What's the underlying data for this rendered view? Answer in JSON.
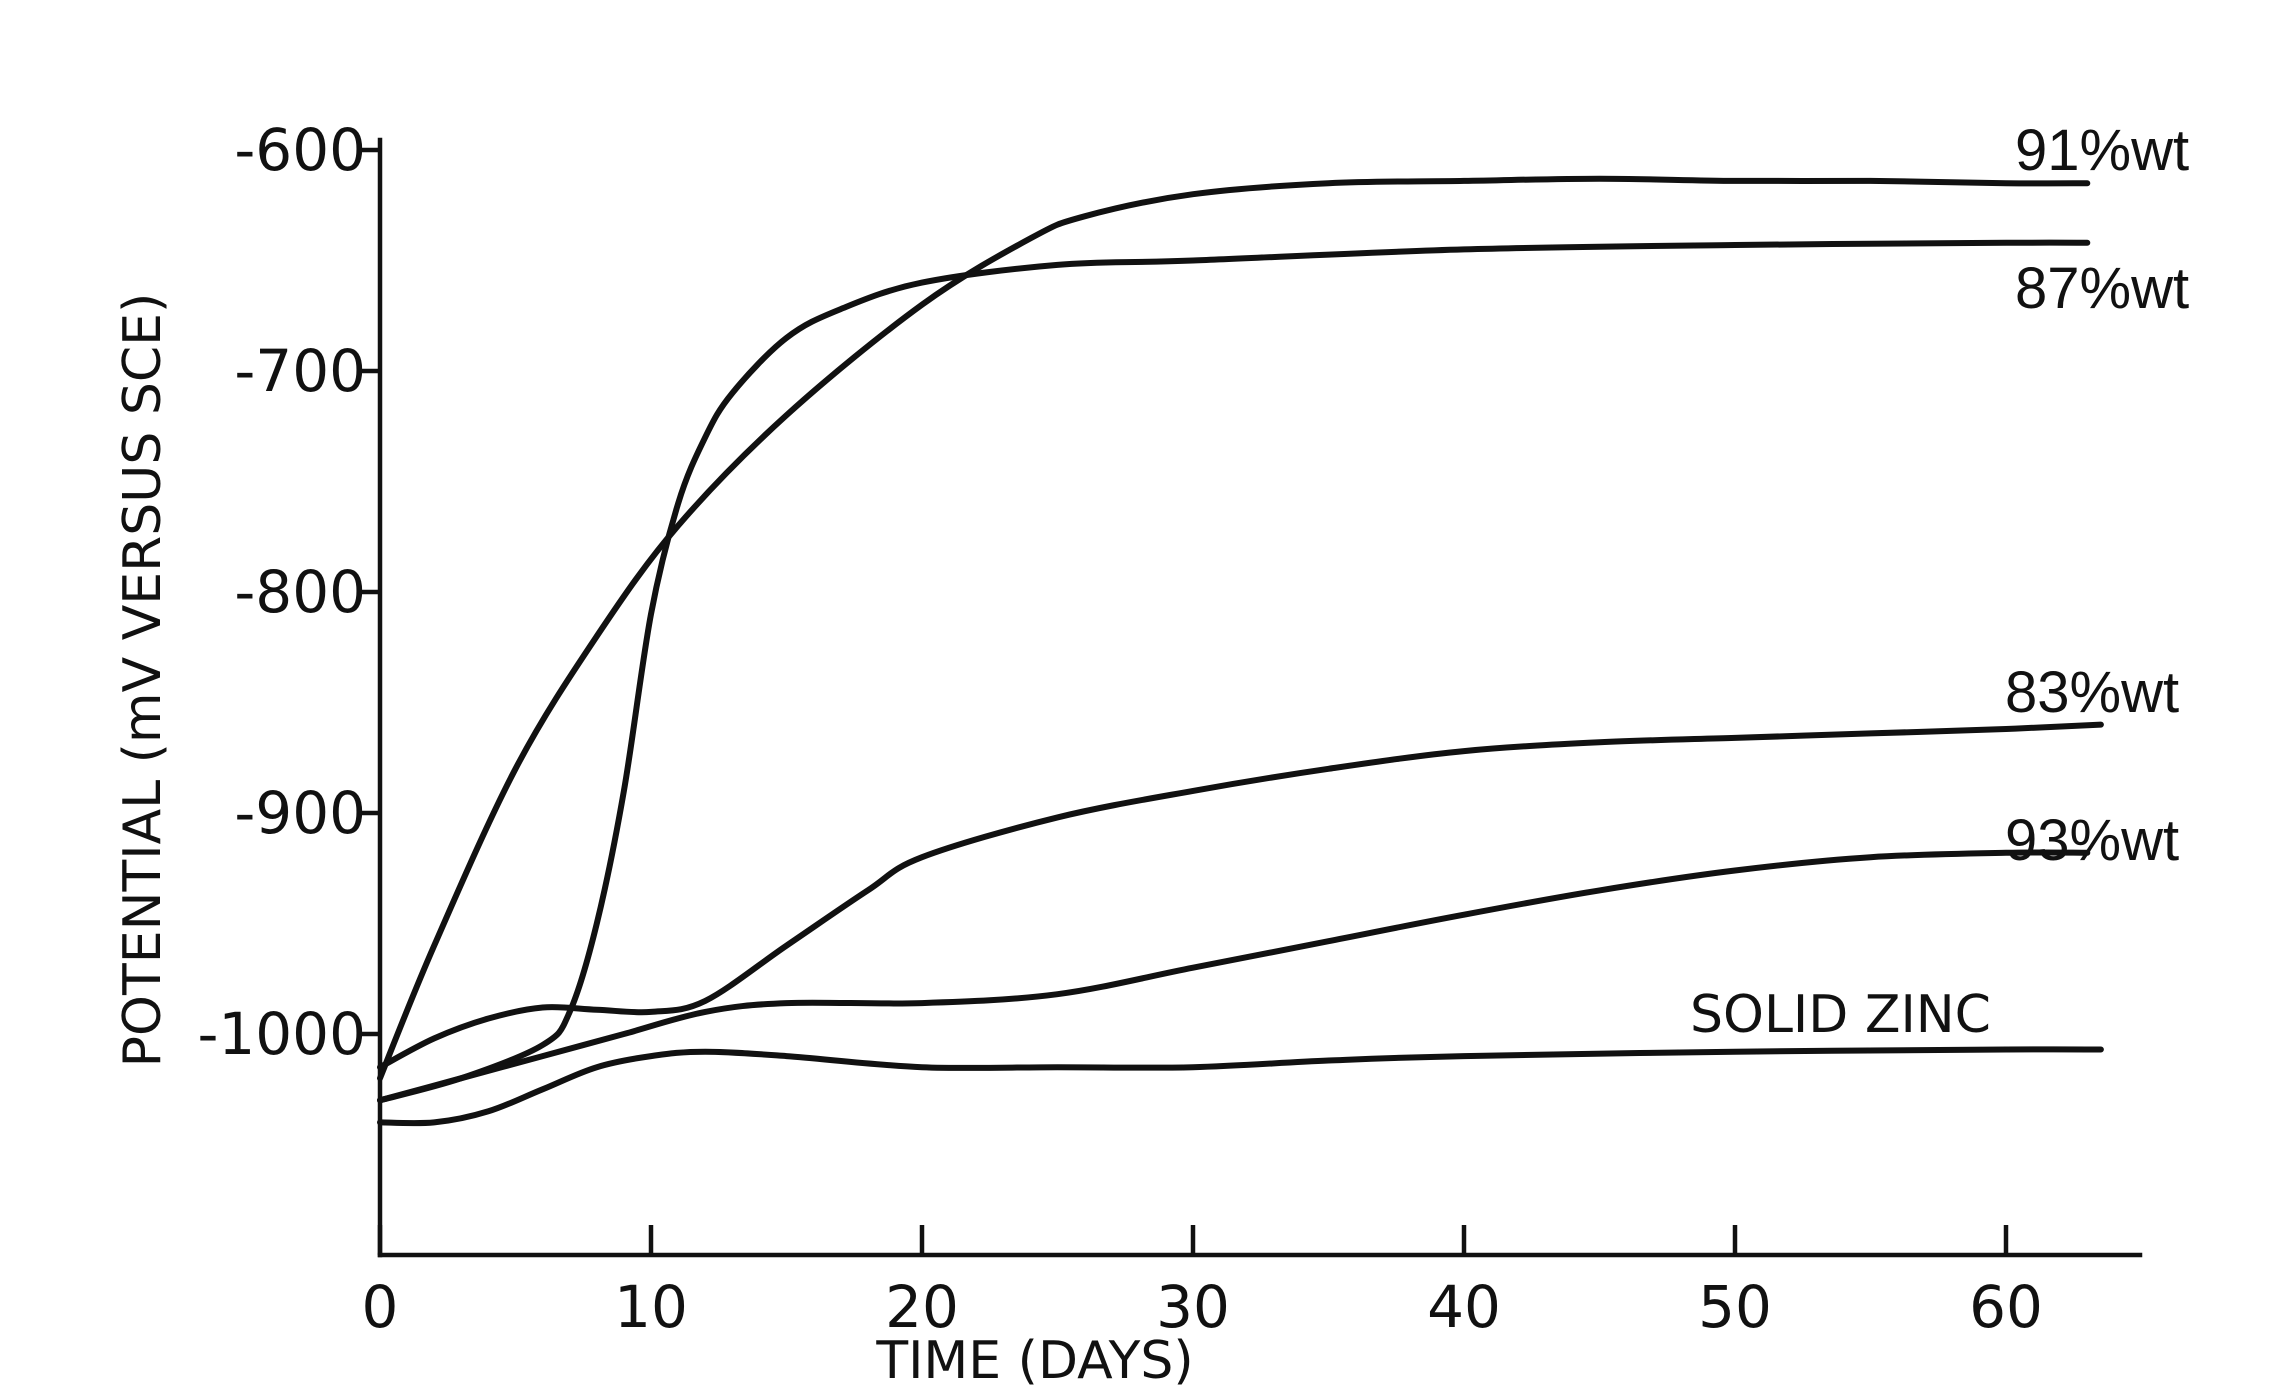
{
  "chart_data": {
    "type": "line",
    "title": "",
    "xlabel": "TIME (DAYS)",
    "ylabel": "POTENTIAL (mV VERSUS SCE)",
    "xlim": [
      0,
      65
    ],
    "ylim": [
      -1100,
      -600
    ],
    "y_inverted": true,
    "xticks": [
      0,
      10,
      20,
      30,
      40,
      50,
      60
    ],
    "yticks": [
      -600,
      -700,
      -800,
      -900,
      -1000
    ],
    "xtick_labels": [
      "0",
      "10",
      "20",
      "30",
      "40",
      "50",
      "60"
    ],
    "ytick_labels": [
      "-600",
      "-700",
      "-800",
      "-900",
      "-1000"
    ],
    "grid": false,
    "legend": "labels at line ends (right)",
    "series": [
      {
        "name": "91%wt",
        "x": [
          0,
          2,
          5,
          8,
          11,
          15,
          20,
          24,
          26,
          30,
          35,
          40,
          45,
          50,
          55,
          60,
          63
        ],
        "y": [
          -1020,
          -960,
          -880,
          -820,
          -770,
          -720,
          -670,
          -640,
          -630,
          -620,
          -615,
          -614,
          -613,
          -614,
          -614,
          -615,
          -615
        ]
      },
      {
        "name": "87%wt",
        "x": [
          0,
          3,
          6,
          7,
          8,
          9,
          10,
          11,
          12,
          13,
          15,
          17,
          20,
          25,
          30,
          40,
          50,
          60,
          63
        ],
        "y": [
          -1030,
          -1020,
          -1005,
          -990,
          -950,
          -890,
          -810,
          -760,
          -730,
          -710,
          -685,
          -672,
          -660,
          -652,
          -650,
          -645,
          -643,
          -642,
          -642
        ]
      },
      {
        "name": "83%wt",
        "x": [
          0,
          2,
          4,
          6,
          8,
          10,
          12,
          15,
          18,
          20,
          25,
          30,
          35,
          40,
          45,
          50,
          55,
          60,
          63.5
        ],
        "y": [
          -1015,
          -1002,
          -993,
          -988,
          -989,
          -990,
          -985,
          -960,
          -935,
          -920,
          -902,
          -890,
          -880,
          -872,
          -868,
          -866,
          -864,
          -862,
          -860
        ]
      },
      {
        "name": "93%wt",
        "x": [
          0,
          3,
          6,
          9,
          12,
          15,
          20,
          25,
          30,
          35,
          40,
          45,
          50,
          55,
          60,
          63
        ],
        "y": [
          -1030,
          -1020,
          -1010,
          -1000,
          -990,
          -986,
          -986,
          -982,
          -970,
          -958,
          -946,
          -935,
          -926,
          -920,
          -918,
          -918
        ]
      },
      {
        "name": "SOLID ZINC",
        "x": [
          0,
          2,
          4,
          6,
          8,
          10,
          12,
          15,
          20,
          25,
          30,
          35,
          40,
          50,
          60,
          63.5
        ],
        "y": [
          -1040,
          -1040,
          -1035,
          -1025,
          -1015,
          -1010,
          -1008,
          -1010,
          -1015,
          -1015,
          -1015,
          -1012,
          -1010,
          -1008,
          -1007,
          -1007
        ]
      }
    ]
  }
}
